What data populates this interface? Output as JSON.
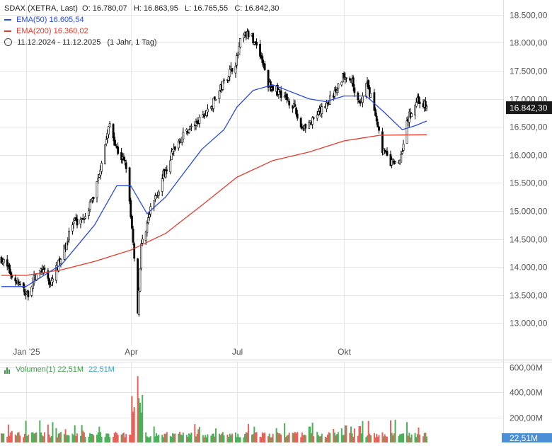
{
  "header": {
    "symbol": "SDAX (XETRA, Last)",
    "open": "O: 16.780,07",
    "high": "H: 16.863,95",
    "low": "L: 16.765,55",
    "close": "C: 16.842,30",
    "ema50_label": "EMA(50)",
    "ema50_value": "16.605,54",
    "ema200_label": "EMA(200)",
    "ema200_value": "16.360,02",
    "range": "11.12.2024 - 11.12.2025",
    "period": "(1 Jahr, 1 Tag)"
  },
  "volume_legend": {
    "label": "Volumen(1)",
    "value": "22,51M",
    "value2": "22,51M"
  },
  "colors": {
    "candle": "#000000",
    "ema50": "#2a4be0",
    "ema200": "#e23b2e",
    "volume_up": "#4cb05a",
    "volume_down": "#e8625a",
    "volume_badge": "#4a8fd6",
    "grid": "#e6e6e6"
  },
  "chart_data": {
    "type": "candlestick",
    "title": "SDAX (XETRA, Last)",
    "last_price_label": "16.842,30",
    "volume_badge": "22,51M",
    "price_axis": {
      "range": [
        12700,
        18700
      ],
      "ticks": [
        13000,
        13500,
        14000,
        14500,
        15000,
        15500,
        16000,
        16500,
        17000,
        17500,
        18000,
        18500
      ],
      "tick_labels": [
        "13.000,00",
        "13.500,00",
        "14.000,00",
        "14.500,00",
        "15.000,00",
        "15.500,00",
        "16.000,00",
        "16.500,00",
        "17.000,00",
        "17.500,00",
        "18.000,00",
        "18.500,00"
      ]
    },
    "time_axis": {
      "range": [
        "2024-12-11",
        "2025-12-11"
      ],
      "ticks": [
        "2025-01-01",
        "2025-04-01",
        "2025-07-01",
        "2025-10-01"
      ],
      "tick_labels": [
        "Jan '25",
        "Apr",
        "Jul",
        "Okt"
      ]
    },
    "volume_axis": {
      "range": [
        0,
        650
      ],
      "ticks": [
        200,
        400,
        600
      ],
      "tick_labels": [
        "200,00M",
        "400,00M",
        "600,00M"
      ]
    },
    "price_path": [
      [
        "2024-12-11",
        14150
      ],
      [
        "2024-12-20",
        13850
      ],
      [
        "2025-01-02",
        13500
      ],
      [
        "2025-01-08",
        13780
      ],
      [
        "2025-01-15",
        13950
      ],
      [
        "2025-01-22",
        13700
      ],
      [
        "2025-02-01",
        14200
      ],
      [
        "2025-02-10",
        14750
      ],
      [
        "2025-02-20",
        14900
      ],
      [
        "2025-03-01",
        15300
      ],
      [
        "2025-03-08",
        16000
      ],
      [
        "2025-03-14",
        16550
      ],
      [
        "2025-03-20",
        16100
      ],
      [
        "2025-03-28",
        15800
      ],
      [
        "2025-04-04",
        14200
      ],
      [
        "2025-04-07",
        13200
      ],
      [
        "2025-04-10",
        14400
      ],
      [
        "2025-04-18",
        15000
      ],
      [
        "2025-04-30",
        15700
      ],
      [
        "2025-05-10",
        16200
      ],
      [
        "2025-05-20",
        16450
      ],
      [
        "2025-05-30",
        16600
      ],
      [
        "2025-06-10",
        16900
      ],
      [
        "2025-06-20",
        17300
      ],
      [
        "2025-07-01",
        17700
      ],
      [
        "2025-07-05",
        18100
      ],
      [
        "2025-07-12",
        18150
      ],
      [
        "2025-07-20",
        17900
      ],
      [
        "2025-07-28",
        17250
      ],
      [
        "2025-08-08",
        17100
      ],
      [
        "2025-08-18",
        16900
      ],
      [
        "2025-08-25",
        16500
      ],
      [
        "2025-09-05",
        16600
      ],
      [
        "2025-09-15",
        16900
      ],
      [
        "2025-09-25",
        17150
      ],
      [
        "2025-10-01",
        17450
      ],
      [
        "2025-10-08",
        17300
      ],
      [
        "2025-10-15",
        16900
      ],
      [
        "2025-10-20",
        17300
      ],
      [
        "2025-10-28",
        16750
      ],
      [
        "2025-11-03",
        16100
      ],
      [
        "2025-11-10",
        15850
      ],
      [
        "2025-11-18",
        15900
      ],
      [
        "2025-11-24",
        16600
      ],
      [
        "2025-12-03",
        17000
      ],
      [
        "2025-12-11",
        16842
      ]
    ],
    "series": [
      {
        "name": "EMA(50)",
        "points": [
          [
            "2024-12-11",
            13650
          ],
          [
            "2025-01-01",
            13650
          ],
          [
            "2025-02-01",
            14050
          ],
          [
            "2025-03-01",
            14750
          ],
          [
            "2025-03-20",
            15450
          ],
          [
            "2025-04-01",
            15450
          ],
          [
            "2025-04-15",
            14950
          ],
          [
            "2025-05-01",
            15250
          ],
          [
            "2025-06-01",
            16100
          ],
          [
            "2025-06-20",
            16450
          ],
          [
            "2025-07-01",
            16850
          ],
          [
            "2025-07-15",
            17150
          ],
          [
            "2025-08-01",
            17250
          ],
          [
            "2025-09-01",
            17000
          ],
          [
            "2025-09-15",
            16950
          ],
          [
            "2025-10-01",
            17050
          ],
          [
            "2025-10-20",
            17050
          ],
          [
            "2025-11-05",
            16750
          ],
          [
            "2025-11-20",
            16450
          ],
          [
            "2025-12-01",
            16520
          ],
          [
            "2025-12-11",
            16605
          ]
        ]
      },
      {
        "name": "EMA(200)",
        "points": [
          [
            "2024-12-11",
            13850
          ],
          [
            "2025-01-01",
            13850
          ],
          [
            "2025-02-01",
            13950
          ],
          [
            "2025-03-01",
            14100
          ],
          [
            "2025-04-01",
            14300
          ],
          [
            "2025-05-01",
            14600
          ],
          [
            "2025-06-01",
            15100
          ],
          [
            "2025-07-01",
            15600
          ],
          [
            "2025-08-01",
            15900
          ],
          [
            "2025-09-01",
            16050
          ],
          [
            "2025-10-01",
            16250
          ],
          [
            "2025-11-01",
            16350
          ],
          [
            "2025-12-11",
            16360
          ]
        ]
      }
    ],
    "volume_peak": [
      "2025-04-07",
      530
    ]
  }
}
